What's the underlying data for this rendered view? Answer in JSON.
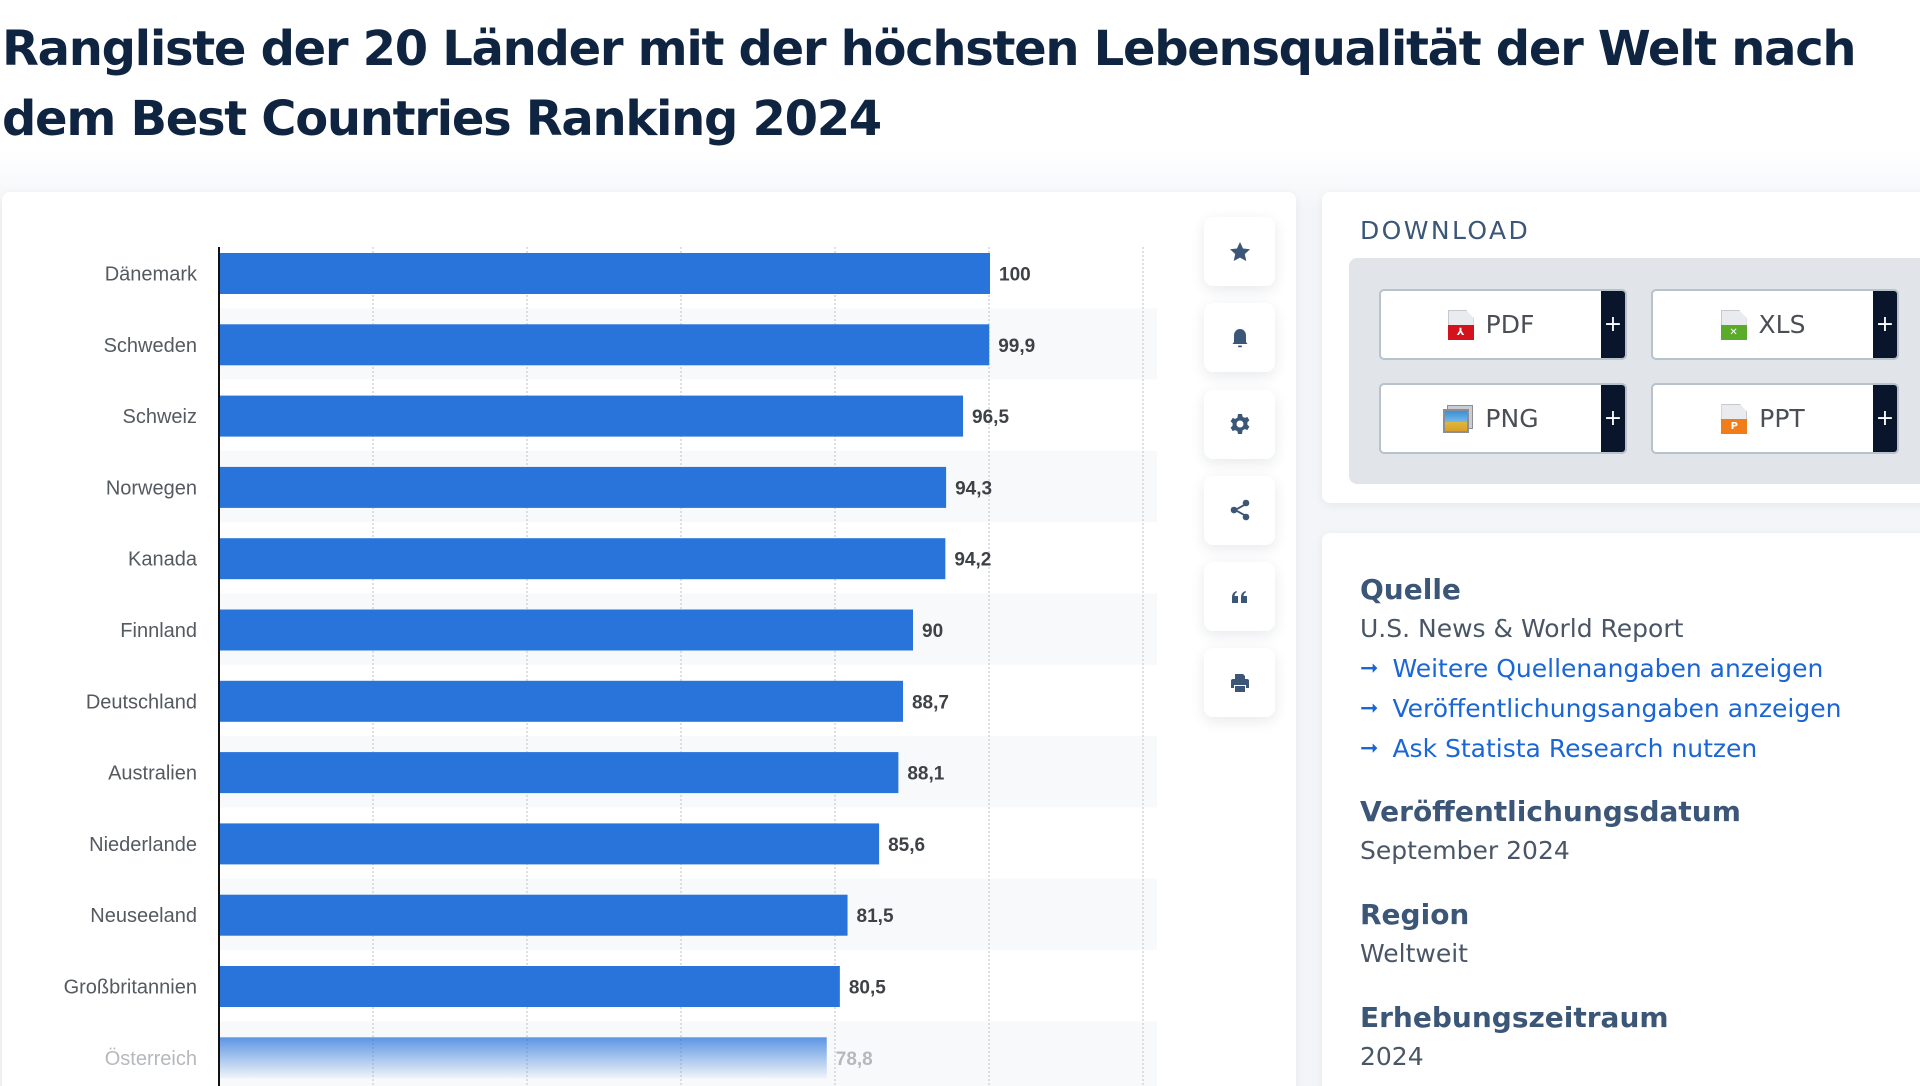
{
  "page": {
    "title": "Rangliste der 20 Länder mit der höchsten Lebensqualität der Welt nach dem Best Countries Ranking 2024"
  },
  "toolbar": {
    "buttons": [
      {
        "name": "favorite",
        "icon": "star-icon"
      },
      {
        "name": "notification",
        "icon": "bell-icon"
      },
      {
        "name": "settings",
        "icon": "gear-icon"
      },
      {
        "name": "share",
        "icon": "share-icon"
      },
      {
        "name": "cite",
        "icon": "quote-icon"
      },
      {
        "name": "print",
        "icon": "print-icon"
      }
    ]
  },
  "download": {
    "title": "DOWNLOAD",
    "buttons": [
      {
        "label": "PDF",
        "icon": "pdf-file-icon",
        "color": "#d4121b",
        "mark": "⅄",
        "plus": "+"
      },
      {
        "label": "XLS",
        "icon": "xls-file-icon",
        "color": "#5aab2a",
        "mark": "✕",
        "plus": "+"
      },
      {
        "label": "PNG",
        "icon": "png-image-icon",
        "color": "#3b8fd6",
        "mark": "",
        "plus": "+"
      },
      {
        "label": "PPT",
        "icon": "ppt-file-icon",
        "color": "#f07c1a",
        "mark": "P",
        "plus": "+"
      }
    ]
  },
  "info": {
    "source_heading": "Quelle",
    "source_value": "U.S. News & World Report",
    "links": [
      "Weitere Quellenangaben anzeigen",
      "Veröffentlichungsangaben anzeigen",
      "Ask Statista Research nutzen"
    ],
    "link_arrow": "➞",
    "date_heading": "Veröffentlichungsdatum",
    "date_value": "September 2024",
    "region_heading": "Region",
    "region_value": "Weltweit",
    "period_heading": "Erhebungszeitraum",
    "period_value": "2024"
  },
  "colors": {
    "bar": "#2874db",
    "accent_link": "#1a66d6",
    "heading": "#3b5676"
  },
  "chart_data": {
    "type": "bar",
    "orientation": "horizontal",
    "title": "Rangliste der 20 Länder mit der höchsten Lebensqualität der Welt nach dem Best Countries Ranking 2024",
    "categories": [
      "Dänemark",
      "Schweden",
      "Schweiz",
      "Norwegen",
      "Kanada",
      "Finnland",
      "Deutschland",
      "Australien",
      "Niederlande",
      "Neuseeland",
      "Großbritannien",
      "Österreich"
    ],
    "values": [
      100,
      99.9,
      96.5,
      94.3,
      94.2,
      90,
      88.7,
      88.1,
      85.6,
      81.5,
      80.5,
      78.8
    ],
    "value_labels": [
      "100",
      "99,9",
      "96,5",
      "94,3",
      "94,2",
      "90",
      "88,7",
      "88,1",
      "85,6",
      "81,5",
      "80,5",
      "78,8"
    ],
    "xlabel": "",
    "ylabel": "",
    "xlim": [
      0,
      120
    ],
    "grid_ticks": [
      20,
      40,
      60,
      80,
      100,
      120
    ],
    "grid": true,
    "faded_last_row": true
  }
}
